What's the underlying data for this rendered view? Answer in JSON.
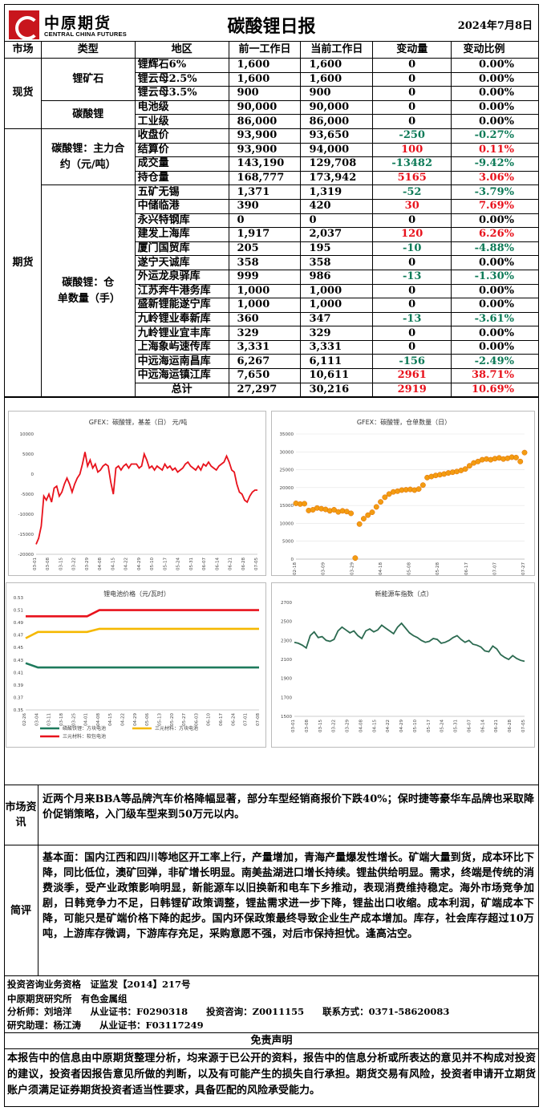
{
  "header": {
    "logo_cn": "中原期货",
    "logo_en": "CENTRAL CHINA FUTURES",
    "title": "碳酸锂日报",
    "date": "2024年7月8日"
  },
  "table": {
    "headers": [
      "市场",
      "类型",
      "地区",
      "前一工作日",
      "当前工作日",
      "变动量",
      "变动比例"
    ],
    "spot": {
      "market": "现货",
      "groups": [
        {
          "type": "锂矿石",
          "rows": [
            {
              "region": "锂辉石6%",
              "prev": "1,600",
              "cur": "1,600",
              "chg": "0",
              "pct": "0.00%",
              "color": ""
            },
            {
              "region": "锂云母2.5%",
              "prev": "1,600",
              "cur": "1,600",
              "chg": "0",
              "pct": "0.00%",
              "color": ""
            },
            {
              "region": "锂云母3.5%",
              "prev": "900",
              "cur": "900",
              "chg": "0",
              "pct": "0.00%",
              "color": ""
            }
          ]
        },
        {
          "type": "碳酸锂",
          "rows": [
            {
              "region": "电池级",
              "prev": "90,000",
              "cur": "90,000",
              "chg": "0",
              "pct": "0.00%",
              "color": ""
            },
            {
              "region": "工业级",
              "prev": "86,000",
              "cur": "86,000",
              "chg": "0",
              "pct": "0.00%",
              "color": ""
            }
          ]
        }
      ]
    },
    "futures": {
      "market": "期货",
      "groups": [
        {
          "type": "碳酸锂：主力合约（元/吨）",
          "rows": [
            {
              "region": "收盘价",
              "prev": "93,900",
              "cur": "93,650",
              "chg": "-250",
              "pct": "-0.27%",
              "color": "green"
            },
            {
              "region": "结算价",
              "prev": "93,900",
              "cur": "94,000",
              "chg": "100",
              "pct": "0.11%",
              "color": "red"
            },
            {
              "region": "成交量",
              "prev": "143,190",
              "cur": "129,708",
              "chg": "-13482",
              "pct": "-9.42%",
              "color": "green"
            },
            {
              "region": "持仓量",
              "prev": "168,777",
              "cur": "173,942",
              "chg": "5165",
              "pct": "3.06%",
              "color": "red"
            }
          ]
        },
        {
          "type": "碳酸锂：仓单数量（手）",
          "rows": [
            {
              "region": "五矿无锡",
              "prev": "1,371",
              "cur": "1,319",
              "chg": "-52",
              "pct": "-3.79%",
              "color": "green"
            },
            {
              "region": "中储临港",
              "prev": "390",
              "cur": "420",
              "chg": "30",
              "pct": "7.69%",
              "color": "red"
            },
            {
              "region": "永兴特钢库",
              "prev": "0",
              "cur": "0",
              "chg": "0",
              "pct": "0.00%",
              "color": ""
            },
            {
              "region": "建发上海库",
              "prev": "1,917",
              "cur": "2,037",
              "chg": "120",
              "pct": "6.26%",
              "color": "red"
            },
            {
              "region": "厦门国贸库",
              "prev": "205",
              "cur": "195",
              "chg": "-10",
              "pct": "-4.88%",
              "color": "green"
            },
            {
              "region": "遂宁天诚库",
              "prev": "358",
              "cur": "358",
              "chg": "0",
              "pct": "0.00%",
              "color": ""
            },
            {
              "region": "外运龙泉驿库",
              "prev": "999",
              "cur": "986",
              "chg": "-13",
              "pct": "-1.30%",
              "color": "green"
            },
            {
              "region": "江苏奔牛港务库",
              "prev": "1,000",
              "cur": "1,000",
              "chg": "0",
              "pct": "0.00%",
              "color": ""
            },
            {
              "region": "盛新锂能遂宁库",
              "prev": "1,000",
              "cur": "1,000",
              "chg": "0",
              "pct": "0.00%",
              "color": ""
            },
            {
              "region": "九岭锂业奉新库",
              "prev": "360",
              "cur": "347",
              "chg": "-13",
              "pct": "-3.61%",
              "color": "green"
            },
            {
              "region": "九岭锂业宜丰库",
              "prev": "329",
              "cur": "329",
              "chg": "0",
              "pct": "0.00%",
              "color": ""
            },
            {
              "region": "上海象屿速传库",
              "prev": "3,331",
              "cur": "3,331",
              "chg": "0",
              "pct": "0.00%",
              "color": ""
            },
            {
              "region": "中远海运南昌库",
              "prev": "6,267",
              "cur": "6,111",
              "chg": "-156",
              "pct": "-2.49%",
              "color": "green"
            },
            {
              "region": "中远海运镇江库",
              "prev": "7,650",
              "cur": "10,611",
              "chg": "2961",
              "pct": "38.71%",
              "color": "red"
            },
            {
              "region": "总计",
              "prev": "27,297",
              "cur": "30,216",
              "chg": "2919",
              "pct": "10.69%",
              "color": "red"
            }
          ]
        }
      ]
    }
  },
  "chart_data": [
    {
      "type": "line",
      "title": "GFEX：碳酸锂，基差（日） 元/吨",
      "color": "#e8121c",
      "ylim": [
        -20000,
        10000
      ],
      "yticks": [
        10000,
        5000,
        0,
        -5000,
        -10000,
        -15000,
        -20000
      ],
      "xticks": [
        "03-01",
        "03-08",
        "03-15",
        "03-22",
        "03-29",
        "04-08",
        "04-15",
        "04-22",
        "04-29",
        "05-10",
        "05-17",
        "05-24",
        "05-31",
        "06-07",
        "06-14",
        "06-21",
        "06-28",
        "07-05"
      ],
      "values": [
        -17500,
        -16000,
        -13000,
        -5500,
        -6500,
        -5000,
        -7000,
        -3500,
        -3000,
        -5500,
        -4500,
        -2500,
        -1000,
        -2500,
        -4500,
        -2500,
        -1000,
        0,
        2500,
        5500,
        2000,
        3500,
        1500,
        2500,
        500,
        1000,
        2000,
        2500,
        2000,
        -2000,
        -5000,
        1500,
        2000,
        1000,
        2000,
        2500,
        1500,
        2500,
        2500,
        2500,
        1500,
        2000,
        5000,
        3500,
        1500,
        2000,
        1000,
        2000,
        1500,
        1000,
        2500,
        1500,
        2000,
        1000,
        1500,
        500,
        1000,
        1500,
        2500,
        3000,
        2000,
        1500,
        1000,
        2000,
        1000,
        2500,
        2000,
        3000,
        2000,
        1500,
        1000,
        2000,
        2500,
        3000,
        4500,
        3000,
        1000,
        500,
        -2500,
        -4500,
        -5000,
        -6500,
        -7000,
        -5500,
        -4500,
        -4000,
        -4000
      ]
    },
    {
      "type": "scatter",
      "title": "GFEX：碳酸锂，仓单数量（日）",
      "color": "#f39c12",
      "ylim": [
        0,
        35000
      ],
      "yticks": [
        35000,
        30000,
        25000,
        20000,
        15000,
        10000,
        5000,
        0
      ],
      "xticks": [
        "02-18",
        "03-09",
        "03-29",
        "04-18",
        "05-08",
        "05-28",
        "06-17",
        "07-07",
        "07-27"
      ],
      "values": [
        15600,
        15400,
        15500,
        13600,
        13800,
        14300,
        14100,
        13900,
        13500,
        13800,
        13200,
        13500,
        13300,
        12800,
        300,
        9800,
        11300,
        12300,
        13100,
        14600,
        16000,
        17300,
        18200,
        18800,
        19000,
        19300,
        19400,
        19500,
        19300,
        19600,
        20700,
        22800,
        23100,
        23400,
        23600,
        23800,
        24100,
        24300,
        24500,
        24800,
        25200,
        26100,
        26900,
        27300,
        27800,
        28000,
        27800,
        28100,
        28300,
        28000,
        28200,
        28500,
        28400,
        27300,
        29800
      ]
    },
    {
      "type": "line",
      "title": "锂电池价格（元/瓦时）",
      "ylim": [
        0.35,
        0.53
      ],
      "yticks": [
        0.53,
        0.51,
        0.49,
        0.47,
        0.45,
        0.43,
        0.41,
        0.39,
        0.37,
        0.35
      ],
      "xticks": [
        "02-26",
        "03-04",
        "03-11",
        "03-18",
        "03-25",
        "04-01",
        "04-08",
        "04-15",
        "04-22",
        "04-29",
        "05-06",
        "05-13",
        "05-20",
        "05-27",
        "06-03",
        "06-10",
        "06-17",
        "06-24",
        "07-01",
        "07-08"
      ],
      "series": [
        {
          "name": "磷酸铁锂：方块电池",
          "color": "#1e7a5c",
          "values": [
            0.425,
            0.418,
            0.418,
            0.418,
            0.418,
            0.418,
            0.418,
            0.418,
            0.418,
            0.418,
            0.418,
            0.418,
            0.418,
            0.418,
            0.418,
            0.418,
            0.418,
            0.418,
            0.418,
            0.418
          ]
        },
        {
          "name": "三元材料：方块电池",
          "color": "#f5b800",
          "values": [
            0.465,
            0.475,
            0.475,
            0.475,
            0.475,
            0.475,
            0.48,
            0.48,
            0.48,
            0.48,
            0.48,
            0.48,
            0.48,
            0.48,
            0.48,
            0.48,
            0.48,
            0.48,
            0.48,
            0.48
          ]
        },
        {
          "name": "三元材料：软包电池",
          "color": "#e8121c",
          "values": [
            0.5,
            0.5,
            0.5,
            0.5,
            0.5,
            0.5,
            0.51,
            0.51,
            0.51,
            0.51,
            0.51,
            0.51,
            0.51,
            0.51,
            0.51,
            0.51,
            0.51,
            0.51,
            0.51,
            0.51
          ]
        }
      ]
    },
    {
      "type": "line",
      "title": "新能源车指数（点）",
      "color": "#2b6a50",
      "ylim": [
        1500,
        2700
      ],
      "yticks": [
        2700,
        2500,
        2300,
        2100,
        1900,
        1700,
        1500
      ],
      "xticks": [
        "03-01",
        "03-08",
        "03-15",
        "03-22",
        "03-29",
        "04-08",
        "04-15",
        "04-22",
        "04-29",
        "05-10",
        "05-17",
        "05-24",
        "05-31",
        "06-07",
        "06-14",
        "06-21",
        "06-28",
        "07-05"
      ],
      "values": [
        2280,
        2270,
        2250,
        2220,
        2350,
        2390,
        2330,
        2340,
        2300,
        2290,
        2310,
        2400,
        2440,
        2410,
        2380,
        2400,
        2350,
        2320,
        2400,
        2420,
        2390,
        2410,
        2460,
        2430,
        2400,
        2370,
        2440,
        2480,
        2430,
        2380,
        2350,
        2330,
        2300,
        2280,
        2290,
        2320,
        2310,
        2270,
        2280,
        2300,
        2330,
        2350,
        2310,
        2280,
        2300,
        2260,
        2250,
        2230,
        2190,
        2180,
        2240,
        2210,
        2150,
        2120,
        2100,
        2140,
        2110,
        2090,
        2080
      ]
    }
  ],
  "sections": {
    "news_label": "市场资讯",
    "news": "近两个月来BBA等品牌汽车价格降幅显著，部分车型经销商报价下跌40%；保时捷等豪华车品牌也采取降价促销策略，入门级车型来到50万元以内。",
    "review_label": "简评",
    "review": "基本面：国内江西和四川等地区开工率上行，产量增加，青海产量爆发性增长。矿端大量到货，成本环比下降，同比低位，澳矿回弹，非矿增长明显。南美盐湖进口增长持续。锂盐供给明显。需求，终端是传统的消费淡季，受产业政策影响明显，新能源车以旧换新和电车下乡推动，表现消费维持稳定。海外市场竞争加剧，日韩竞争力不足，日韩锂矿政策调整，锂盐需求进一步下降，锂盐出口收缩。成本利润，矿端成本下降，可能只是矿端价格下降的起步。国内环保政策最终导致企业生产成本增加。库存，社会库存超过10万吨，上游库存微调，下游库存充足，采购意愿不强，对后市保持担忧。逢高沽空。"
  },
  "footer": {
    "line1": "投资咨询业务资格　证监发【2014】217号",
    "line2": "中原期货研究所　有色金属组",
    "line3a": "分析师：刘培洋　　从业证书：F0290318　　投资咨询：Z0011155　　联系方式：0371-58620083",
    "line4": "研究助理：杨江涛　　从业证书：F03117249",
    "disclaimer_title": "免责声明",
    "disclaimer": "本报告中的信息由中原期货整理分析，均来源于已公开的资料，报告中的信息分析或所表达的意见并不构成对投资的建议，投资者因报告意见所做的判断，以及有可能产生的损失自行承担。期货交易有风险，投资者申请开立期货账户须满足证券期货投资者适当性要求，具备匹配的风险承受能力。"
  }
}
